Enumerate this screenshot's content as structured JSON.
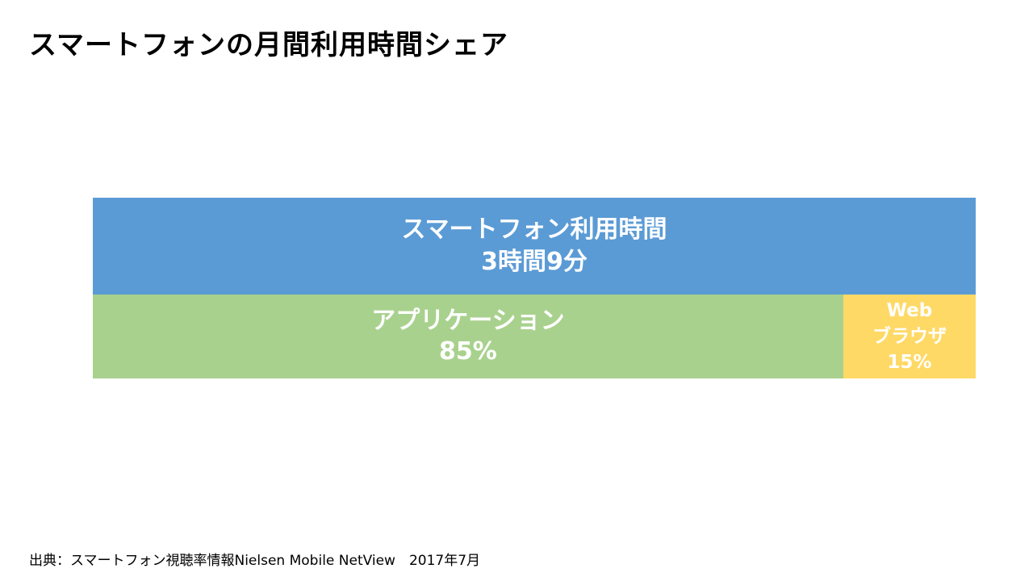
{
  "title": "スマートフォンの月間利用時間シェア",
  "chart_data": {
    "type": "bar",
    "total": {
      "label": "スマートフォン利用時間",
      "value_text": "3時間9分"
    },
    "categories": [
      "アプリケーション",
      "Webブラウザ"
    ],
    "series": [
      {
        "values": [
          85,
          15
        ]
      }
    ],
    "segment_lines": [
      [
        "アプリケーション",
        "85%"
      ],
      [
        "Web",
        "ブラウザ",
        "15%"
      ]
    ],
    "unit": "%",
    "colors": {
      "total": "#5B9BD5",
      "segments": [
        "#A9D18E",
        "#FFD966"
      ]
    }
  },
  "source_text": "出典：スマートフォン視聴率情報Nielsen Mobile NetView　2017年7月"
}
